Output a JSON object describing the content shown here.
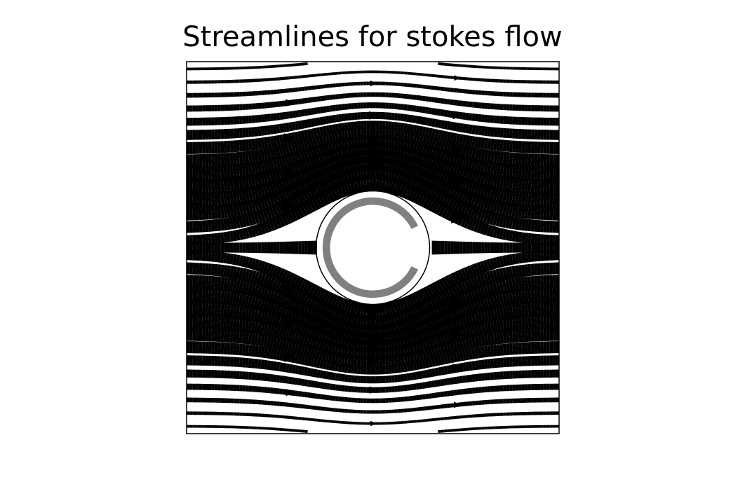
{
  "chart_data": {
    "type": "streamplot",
    "title": "Streamlines for stokes flow",
    "xlabel": "",
    "ylabel": "",
    "xlim": [
      -1,
      1
    ],
    "ylim": [
      -1,
      1
    ],
    "axes_visible": false,
    "grid": false,
    "obstacle": {
      "shape": "ring",
      "center": [
        0,
        0
      ],
      "inner_radius": 0.23,
      "outer_radius": 0.27,
      "color": "#808080",
      "gap_direction": "right"
    },
    "flow": {
      "direction": "left-to-right",
      "line_color": "#000000",
      "width_encodes": "speed",
      "arrows": true,
      "description_values": [
        0
      ]
    },
    "colors": {
      "streamline": "#000000",
      "obstacle": "#808080",
      "frame": "#000000"
    }
  }
}
